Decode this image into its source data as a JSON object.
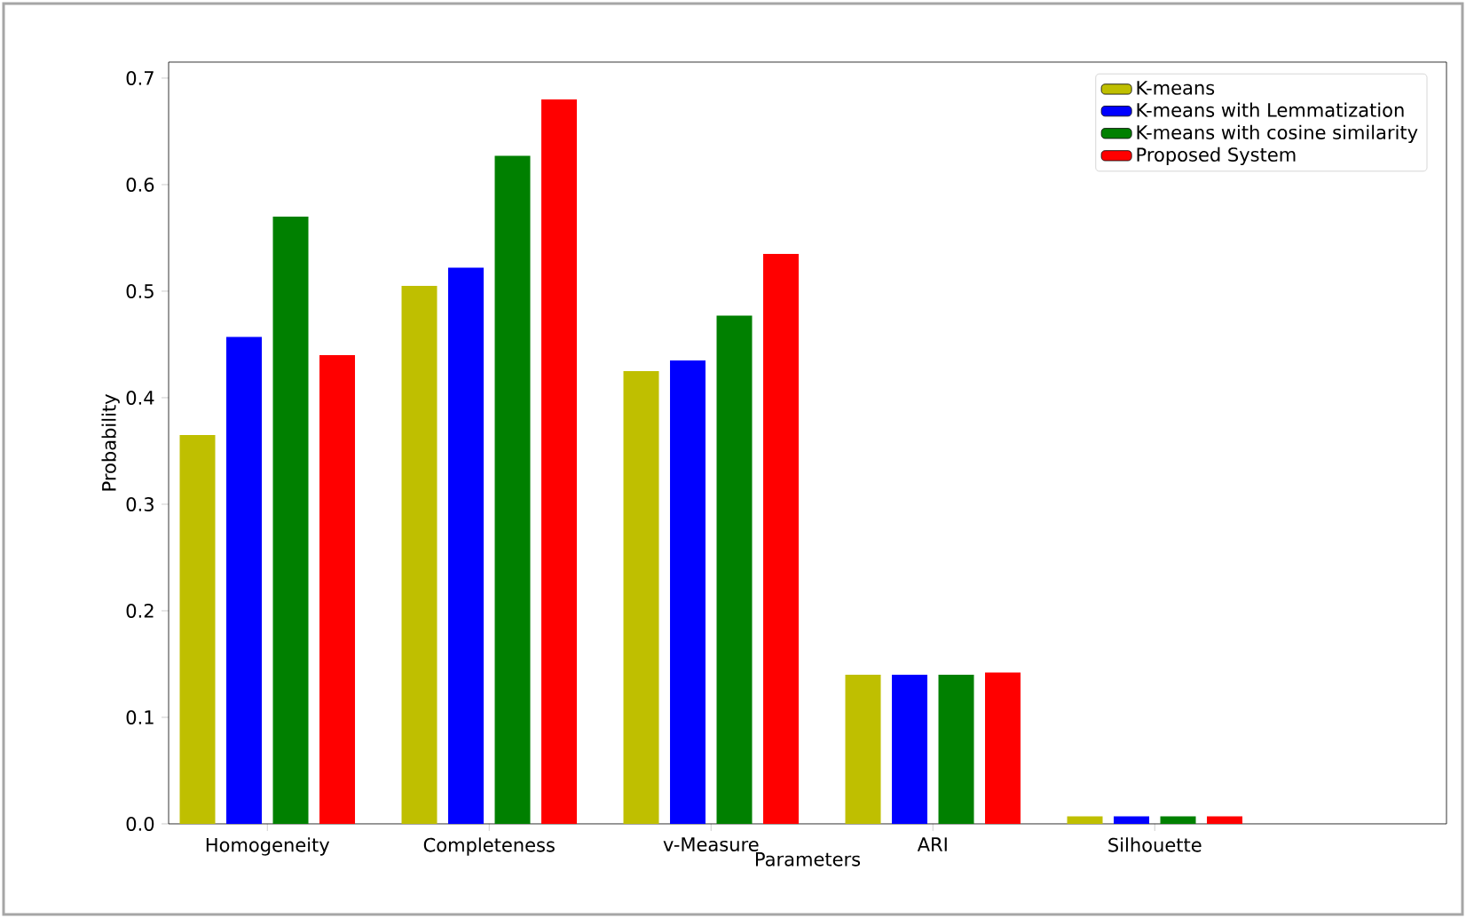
{
  "chart_data": {
    "type": "bar",
    "xlabel": "Parameters",
    "ylabel": "Probability",
    "categories": [
      "Homogeneity",
      "Completeness",
      "v-Measure",
      "ARI",
      "Silhouette"
    ],
    "series": [
      {
        "name": "K-means",
        "color": "#bfbf00",
        "values": [
          0.365,
          0.505,
          0.425,
          0.14,
          0.007
        ]
      },
      {
        "name": "K-means with Lemmatization",
        "color": "#0000ff",
        "values": [
          0.457,
          0.522,
          0.435,
          0.14,
          0.007
        ]
      },
      {
        "name": "K-means with cosine similarity",
        "color": "#008000",
        "values": [
          0.57,
          0.627,
          0.477,
          0.14,
          0.007
        ]
      },
      {
        "name": "Proposed System",
        "color": "#ff0000",
        "values": [
          0.44,
          0.68,
          0.535,
          0.142,
          0.007
        ]
      }
    ],
    "ylim": [
      0,
      0.715
    ],
    "yticks": [
      {
        "value": 0,
        "label": "0.0"
      },
      {
        "value": 0.1,
        "label": "0.1"
      },
      {
        "value": 0.2,
        "label": "0.2"
      },
      {
        "value": 0.3,
        "label": "0.3"
      },
      {
        "value": 0.4,
        "label": "0.4"
      },
      {
        "value": 0.5,
        "label": "0.5"
      },
      {
        "value": 0.6,
        "label": "0.6"
      },
      {
        "value": 0.7,
        "label": "0.7"
      }
    ],
    "legend": "top right",
    "grid": false
  }
}
